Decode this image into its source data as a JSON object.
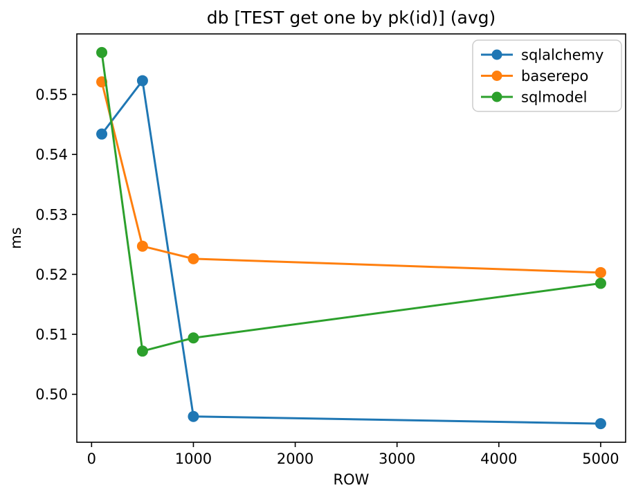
{
  "figure": {
    "background": "#ffffff",
    "axis_color": "#000000",
    "legend_border_color": "#cccccc"
  },
  "chart_data": {
    "type": "line",
    "title": "db [TEST get one by pk(id)] (avg)",
    "xlabel": "ROW",
    "ylabel": "ms",
    "x": [
      100,
      500,
      1000,
      5000
    ],
    "series": [
      {
        "name": "sqlalchemy",
        "color": "#1f77b4",
        "values": [
          0.5434,
          0.5523,
          0.4963,
          0.4951
        ]
      },
      {
        "name": "baserepo",
        "color": "#ff7f0e",
        "values": [
          0.5521,
          0.5247,
          0.5226,
          0.5203
        ]
      },
      {
        "name": "sqlmodel",
        "color": "#2ca02c",
        "values": [
          0.557,
          0.5072,
          0.5094,
          0.5185
        ]
      }
    ],
    "xlim": [
      -145,
      5245
    ],
    "ylim": [
      0.492,
      0.5601
    ],
    "xticks": {
      "values": [
        0,
        1000,
        2000,
        3000,
        4000,
        5000
      ],
      "labels": [
        "0",
        "1000",
        "2000",
        "3000",
        "4000",
        "5000"
      ]
    },
    "yticks": {
      "values": [
        0.5,
        0.51,
        0.52,
        0.53,
        0.54,
        0.55
      ],
      "labels": [
        "0.50",
        "0.51",
        "0.52",
        "0.53",
        "0.54",
        "0.55"
      ]
    },
    "grid": false,
    "legend": {
      "position": "upper-right",
      "entries": [
        "sqlalchemy",
        "baserepo",
        "sqlmodel"
      ]
    }
  }
}
